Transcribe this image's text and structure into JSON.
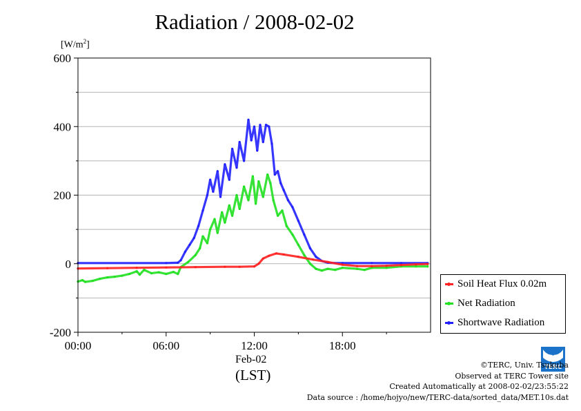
{
  "title": "Radiation / 2008-02-02",
  "unit_label": "[W/m",
  "unit_sup": "2",
  "unit_close": "]",
  "x_date_label": "Feb-02",
  "x_tz_label": "(LST)",
  "credits": {
    "copyright": "©TERC, Univ. Tsukuba",
    "observed": "Observed at TERC Tower site",
    "created": "Created Automatically at 2008-02-02/23:55:22",
    "source": "Data source : /home/hojyo/new/TERC-data/sorted_data/MET.10s.dat"
  },
  "logo_text": "TERC",
  "colors": {
    "soil": "#ff2020",
    "net": "#20e020",
    "shortwave": "#2020ff"
  },
  "chart_data": {
    "type": "line",
    "title": "Radiation / 2008-02-02",
    "ylabel": "[W/m2]",
    "ylim": [
      -200,
      600
    ],
    "xlim": [
      0,
      24
    ],
    "grid": true,
    "legend_position": "right-bottom",
    "y_ticks": [
      "600",
      "400",
      "200",
      "0",
      "-200"
    ],
    "y_tick_values": [
      600,
      400,
      200,
      0,
      -200
    ],
    "x_ticks": [
      "00:00",
      "06:00",
      "12:00",
      "18:00"
    ],
    "x_tick_values": [
      0,
      6,
      12,
      18
    ],
    "series": [
      {
        "name": "Soil Heat Flux 0.02m",
        "color": "#ff2020",
        "x": [
          0,
          2,
          4,
          6,
          8,
          10,
          11,
          12,
          12.3,
          12.6,
          13,
          13.5,
          14,
          15,
          16,
          17,
          18,
          19,
          20,
          21,
          22,
          23,
          23.8
        ],
        "y": [
          -14,
          -13,
          -12,
          -11,
          -10,
          -9,
          -9,
          -8,
          0,
          15,
          23,
          30,
          27,
          20,
          12,
          5,
          -3,
          -7,
          -7,
          -6,
          -4,
          -2,
          -1
        ]
      },
      {
        "name": "Net Radiation",
        "color": "#20e020",
        "x": [
          0,
          0.3,
          0.5,
          1,
          1.5,
          2,
          2.5,
          3,
          3.5,
          4,
          4.2,
          4.5,
          5,
          5.5,
          6,
          6.5,
          6.8,
          7,
          7.5,
          8,
          8.3,
          8.5,
          8.8,
          9,
          9.3,
          9.5,
          9.8,
          10,
          10.3,
          10.5,
          10.8,
          11,
          11.3,
          11.6,
          11.9,
          12.1,
          12.3,
          12.6,
          12.9,
          13.1,
          13.3,
          13.6,
          13.9,
          14.2,
          14.6,
          15,
          15.4,
          15.8,
          16.2,
          16.6,
          17,
          17.5,
          18,
          19,
          19.5,
          20,
          21,
          22,
          23,
          23.8
        ],
        "y": [
          -52,
          -48,
          -53,
          -50,
          -44,
          -40,
          -38,
          -35,
          -30,
          -22,
          -32,
          -18,
          -28,
          -25,
          -30,
          -24,
          -30,
          -10,
          5,
          25,
          45,
          80,
          60,
          100,
          130,
          90,
          150,
          120,
          170,
          140,
          200,
          160,
          225,
          185,
          255,
          175,
          240,
          195,
          260,
          235,
          185,
          140,
          155,
          110,
          85,
          55,
          25,
          0,
          -15,
          -20,
          -15,
          -18,
          -12,
          -15,
          -18,
          -12,
          -12,
          -8,
          -8,
          -8
        ]
      },
      {
        "name": "Shortwave Radiation",
        "color": "#2020ff",
        "x": [
          0,
          6,
          6.8,
          7,
          7.3,
          7.6,
          7.9,
          8.2,
          8.5,
          8.8,
          9.0,
          9.2,
          9.5,
          9.7,
          10,
          10.3,
          10.5,
          10.8,
          11,
          11.3,
          11.6,
          11.8,
          12,
          12.2,
          12.4,
          12.6,
          12.8,
          13.0,
          13.2,
          13.4,
          13.6,
          13.8,
          14,
          14.3,
          14.6,
          15,
          15.4,
          15.8,
          16.2,
          16.6,
          17,
          17.5,
          18,
          20,
          22,
          23.8
        ],
        "y": [
          2,
          2,
          3,
          10,
          35,
          55,
          75,
          110,
          155,
          200,
          245,
          210,
          270,
          195,
          290,
          245,
          335,
          280,
          355,
          300,
          420,
          360,
          400,
          330,
          405,
          355,
          405,
          400,
          350,
          260,
          270,
          235,
          215,
          185,
          165,
          125,
          85,
          45,
          20,
          8,
          3,
          2,
          2,
          2,
          2,
          2
        ]
      }
    ]
  }
}
